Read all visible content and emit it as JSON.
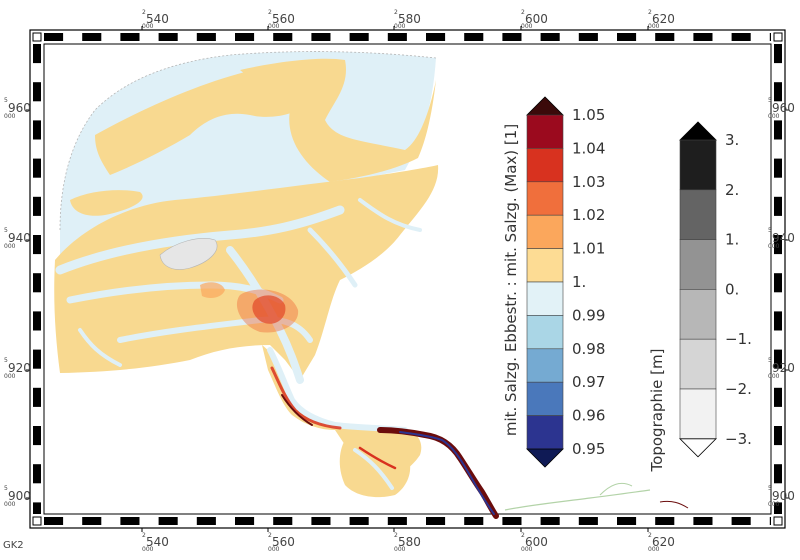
{
  "map": {
    "crs_label": "GK2",
    "x_ticks": [
      {
        "prefix": "2",
        "main": "540",
        "suffix": "000"
      },
      {
        "prefix": "2",
        "main": "560",
        "suffix": "000"
      },
      {
        "prefix": "2",
        "main": "580",
        "suffix": "000"
      },
      {
        "prefix": "2",
        "main": "600",
        "suffix": "000"
      },
      {
        "prefix": "2",
        "main": "620",
        "suffix": "000"
      }
    ],
    "y_ticks": [
      {
        "prefix": "5",
        "main": "960",
        "suffix": "000"
      },
      {
        "prefix": "5",
        "main": "940",
        "suffix": "000"
      },
      {
        "prefix": "5",
        "main": "920",
        "suffix": "000"
      },
      {
        "prefix": "5",
        "main": "900",
        "suffix": "000"
      }
    ],
    "colors": {
      "sea_light_blue": "#dff0f7",
      "flat_orange": "#f8d990",
      "accent_orange": "#ef9a4a",
      "accent_red": "#c9341f",
      "dark_red": "#6b0c0c",
      "land_gray": "#d0d0d0"
    }
  },
  "salinity_colorbar": {
    "title": "mit. Salzg. Ebbestr. : mit. Salzg. (Max) [1]",
    "labels": [
      "1.05",
      "1.04",
      "1.03",
      "1.02",
      "1.01",
      "1.",
      "0.99",
      "0.98",
      "0.97",
      "0.96",
      "0.95"
    ],
    "colors": [
      "#9b0a1e",
      "#d8321f",
      "#f06f3c",
      "#fba75c",
      "#fddc94",
      "#e2f2f7",
      "#aad6e6",
      "#75aad2",
      "#4a78bb",
      "#2c3490"
    ],
    "overflow_color": "#3b0a0a",
    "underflow_color": "#0f1a55"
  },
  "topography_colorbar": {
    "title": "Topographie [m]",
    "labels": [
      "3.",
      "2.",
      "1.",
      "0.",
      "−1.",
      "−2.",
      "−3."
    ],
    "colors": [
      "#1e1e1e",
      "#646464",
      "#939393",
      "#b7b7b7",
      "#d5d5d5",
      "#f2f2f2"
    ],
    "overflow_color": "#000000",
    "underflow_color": "#ffffff"
  }
}
